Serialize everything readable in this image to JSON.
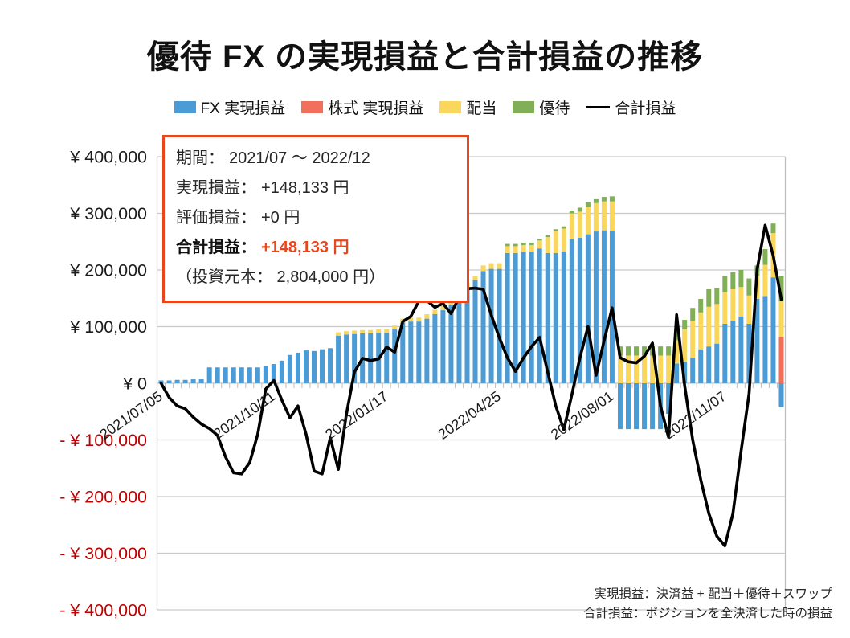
{
  "title": "優待 FX の実現損益と合計損益の推移",
  "legend": [
    {
      "label": "FX 実現損益",
      "color": "#4B9CD6",
      "swatch": "box"
    },
    {
      "label": "株式 実現損益",
      "color": "#F1705B",
      "swatch": "box"
    },
    {
      "label": "配当",
      "color": "#F9D65C",
      "swatch": "box"
    },
    {
      "label": "優待",
      "color": "#81AF57",
      "swatch": "box"
    },
    {
      "label": "合計損益",
      "color": "#000000",
      "swatch": "line"
    }
  ],
  "info_box": {
    "period": {
      "label": "期間：",
      "value": "2021/07 ～ 2022/12"
    },
    "realized": {
      "label": "実現損益：",
      "value": "+148,133 円"
    },
    "unrealized": {
      "label": "評価損益：",
      "value": "+0 円"
    },
    "total": {
      "label": "合計損益：",
      "value": "+148,133 円"
    },
    "principal": "（投資元本： 2,804,000 円）"
  },
  "footer": {
    "line1": "実現損益：決済益 + 配当＋優待＋スワップ",
    "line2": "合計損益：ポジションを全決済した時の損益"
  },
  "chart_data": {
    "type": "bar",
    "stacked": true,
    "title": "優待 FX の実現損益と合計損益の推移",
    "x_unit": "week",
    "weeks": 78,
    "x_tick_labels": [
      {
        "index": 0,
        "label": "2021/07/05"
      },
      {
        "index": 14,
        "label": "2021/10/11"
      },
      {
        "index": 28,
        "label": "2022/01/17"
      },
      {
        "index": 42,
        "label": "2022/04/25"
      },
      {
        "index": 56,
        "label": "2022/08/01"
      },
      {
        "index": 70,
        "label": "2022/11/07"
      }
    ],
    "ylim": [
      -400000,
      400000
    ],
    "ytick_step": 100000,
    "y_tick_labels": [
      "¥ 400,000",
      "¥ 300,000",
      "¥ 200,000",
      "¥ 100,000",
      "¥ 0",
      "- ¥ 100,000",
      "- ¥ 200,000",
      "- ¥ 300,000",
      "- ¥ 400,000"
    ],
    "grid": true,
    "legend_position": "top",
    "series": [
      {
        "name": "FX 実現損益",
        "color": "#4B9CD6",
        "values": [
          5000,
          5000,
          6000,
          6000,
          7000,
          7000,
          28000,
          28000,
          28000,
          28000,
          28000,
          28000,
          28000,
          30000,
          34000,
          40000,
          50000,
          54000,
          58000,
          57000,
          60000,
          62000,
          84000,
          86000,
          87000,
          88000,
          88000,
          89000,
          89000,
          95000,
          107000,
          109000,
          109000,
          114000,
          122000,
          129000,
          139000,
          155000,
          169000,
          182000,
          198000,
          202000,
          202000,
          230000,
          230000,
          232000,
          232000,
          238000,
          230000,
          230000,
          233000,
          255000,
          257000,
          263000,
          268000,
          270000,
          269000,
          -81000,
          -81000,
          -81000,
          -81000,
          -81000,
          -81000,
          -54000,
          35000,
          38000,
          45000,
          60000,
          65000,
          70000,
          105000,
          110000,
          118000,
          105000,
          149000,
          154000,
          187000,
          -42000
        ]
      },
      {
        "name": "株式 実現損益",
        "color": "#F1705B",
        "values": [
          0,
          0,
          0,
          0,
          0,
          0,
          0,
          0,
          0,
          0,
          0,
          0,
          0,
          0,
          0,
          0,
          0,
          0,
          0,
          0,
          0,
          0,
          0,
          0,
          0,
          0,
          0,
          0,
          0,
          0,
          0,
          0,
          0,
          0,
          0,
          0,
          0,
          0,
          0,
          0,
          0,
          0,
          0,
          0,
          0,
          0,
          0,
          0,
          0,
          0,
          0,
          0,
          0,
          0,
          0,
          0,
          0,
          0,
          0,
          0,
          0,
          0,
          0,
          0,
          0,
          0,
          0,
          0,
          0,
          0,
          0,
          0,
          0,
          0,
          0,
          0,
          0,
          82000
        ]
      },
      {
        "name": "配当",
        "color": "#F9D65C",
        "values": [
          0,
          0,
          0,
          0,
          0,
          0,
          0,
          0,
          0,
          0,
          0,
          0,
          0,
          0,
          0,
          0,
          0,
          0,
          0,
          0,
          0,
          0,
          6000,
          6000,
          6000,
          6000,
          6000,
          6000,
          6000,
          7000,
          7000,
          7000,
          7000,
          8000,
          8000,
          8000,
          8000,
          8000,
          8000,
          8000,
          10000,
          10000,
          10000,
          12000,
          12000,
          12000,
          12000,
          14000,
          28000,
          38000,
          40000,
          45000,
          46000,
          48000,
          50000,
          51000,
          52000,
          49000,
          49000,
          49000,
          49000,
          49000,
          49000,
          49000,
          41000,
          57000,
          65000,
          65000,
          70000,
          70000,
          56000,
          56000,
          52000,
          50000,
          41000,
          55000,
          78000,
          63000
        ]
      },
      {
        "name": "優待",
        "color": "#81AF57",
        "values": [
          0,
          0,
          0,
          0,
          0,
          0,
          0,
          0,
          0,
          0,
          0,
          0,
          0,
          0,
          0,
          0,
          0,
          0,
          0,
          0,
          0,
          0,
          0,
          0,
          0,
          0,
          0,
          0,
          0,
          0,
          0,
          0,
          0,
          0,
          0,
          0,
          0,
          0,
          0,
          0,
          0,
          0,
          0,
          4000,
          4000,
          4000,
          4000,
          3000,
          3000,
          4000,
          4000,
          5000,
          7000,
          9000,
          7000,
          8000,
          9000,
          16000,
          16000,
          16000,
          16000,
          16000,
          16000,
          16000,
          14000,
          17000,
          23000,
          24000,
          31000,
          28000,
          29000,
          30000,
          30000,
          30000,
          18000,
          28000,
          17000,
          45133
        ]
      }
    ],
    "line": {
      "name": "合計損益",
      "color": "#000000",
      "values": [
        0,
        -25000,
        -40000,
        -45000,
        -60000,
        -72000,
        -80000,
        -92000,
        -130000,
        -158000,
        -160000,
        -140000,
        -90000,
        -10000,
        5000,
        -30000,
        -61000,
        -40000,
        -90000,
        -155000,
        -160000,
        -96000,
        -152000,
        -55000,
        20000,
        44000,
        40000,
        43000,
        64000,
        55000,
        109000,
        118000,
        145000,
        146000,
        134000,
        141000,
        123000,
        152000,
        167000,
        168000,
        166000,
        120000,
        80000,
        45000,
        21000,
        45000,
        65000,
        81000,
        20000,
        -40000,
        -82000,
        -20000,
        45000,
        100000,
        14000,
        75000,
        133000,
        45000,
        38000,
        36000,
        48000,
        71000,
        -40000,
        -95000,
        121000,
        -4000,
        -100000,
        -170000,
        -230000,
        -270000,
        -287000,
        -230000,
        -120000,
        -18000,
        201000,
        279000,
        225000,
        148133
      ]
    }
  },
  "colors": {
    "grid": "#C9C9C9",
    "axis": "#BFBFBF",
    "y_label_positive": "#1a1a1a",
    "y_label_negative": "#C00000",
    "x_label": "#1a1a1a",
    "accent": "#E6471D"
  }
}
